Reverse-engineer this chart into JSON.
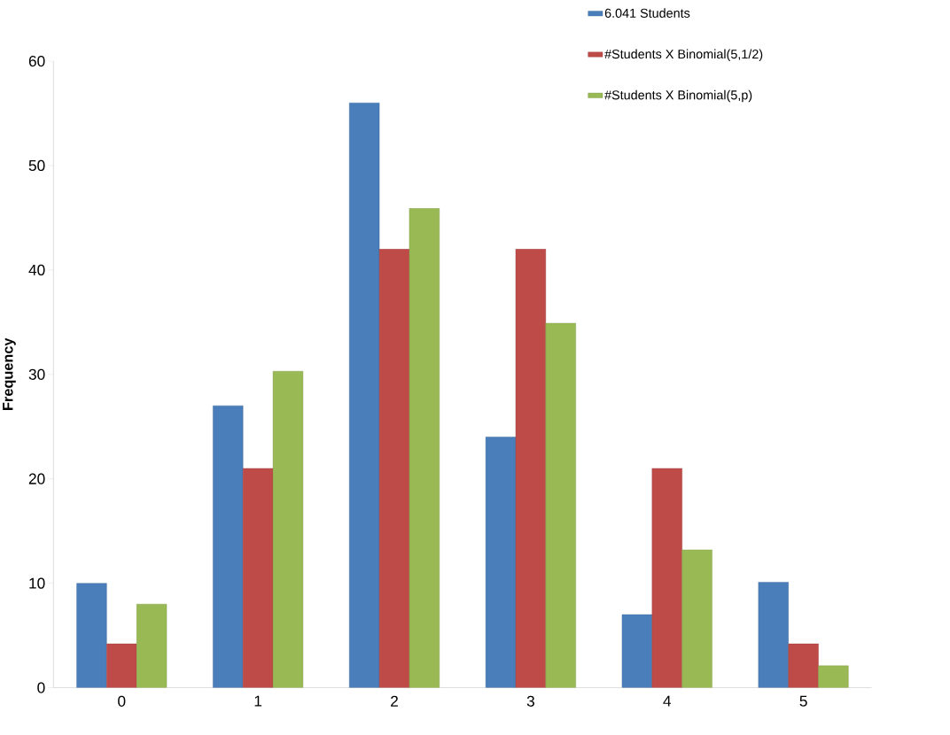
{
  "chart_data": {
    "type": "bar",
    "ylabel": "Frequency",
    "categories": [
      "0",
      "1",
      "2",
      "3",
      "4",
      "5"
    ],
    "series": [
      {
        "name": "6.041 Students",
        "color": "#4a7ebb",
        "values": [
          10,
          27,
          56,
          24,
          7,
          10.1
        ]
      },
      {
        "name": "#Students X Binomial(5,1/2)",
        "color": "#be4b48",
        "values": [
          4.2,
          21,
          42,
          42,
          21,
          4.2
        ]
      },
      {
        "name": "#Students X Binomial(5,p)",
        "color": "#98b954",
        "values": [
          8,
          30.3,
          45.9,
          34.9,
          13.2,
          2.1
        ]
      }
    ],
    "ylim": [
      0,
      60
    ],
    "yticks": [
      0,
      10,
      20,
      30,
      40,
      50,
      60
    ],
    "grid": false,
    "legend": "top right"
  }
}
